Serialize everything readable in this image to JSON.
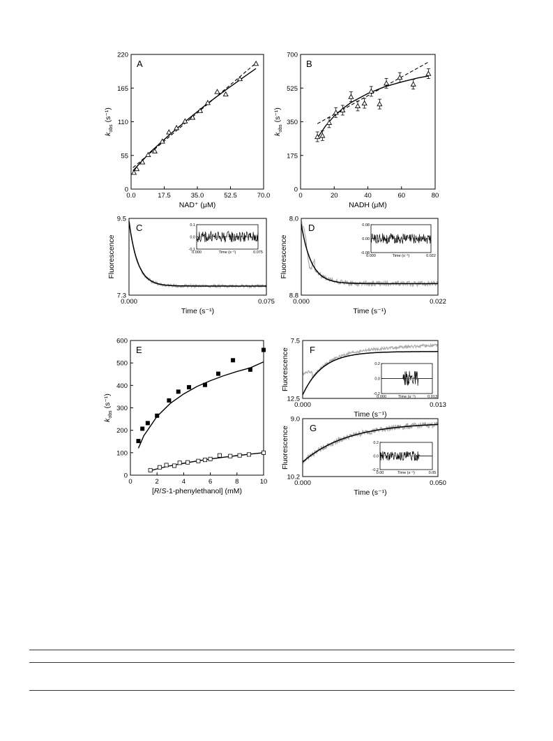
{
  "chart_data": [
    {
      "id": "A",
      "panel_label": "A",
      "type": "scatter",
      "xlabel": "NAD⁺ (μM)",
      "ylabel_main": "k",
      "ylabel_sub": "obs",
      "ylabel_tail": " (s⁻¹)",
      "xlim": [
        0,
        70
      ],
      "ylim": [
        0,
        220
      ],
      "xticks": [
        "0.0",
        "17.5",
        "35.0",
        "52.5",
        "70.0"
      ],
      "yticks": [
        "0",
        "55",
        "110",
        "165",
        "220"
      ],
      "marker": "open-triangle",
      "points": [
        {
          "x": 1.5,
          "y": 27
        },
        {
          "x": 3,
          "y": 33
        },
        {
          "x": 6,
          "y": 44
        },
        {
          "x": 9,
          "y": 56
        },
        {
          "x": 12.5,
          "y": 62
        },
        {
          "x": 16.5,
          "y": 78
        },
        {
          "x": 20,
          "y": 93
        },
        {
          "x": 24,
          "y": 100
        },
        {
          "x": 28.5,
          "y": 111
        },
        {
          "x": 32.5,
          "y": 117
        },
        {
          "x": 36.5,
          "y": 128
        },
        {
          "x": 40.5,
          "y": 141
        },
        {
          "x": 45.5,
          "y": 159
        },
        {
          "x": 50,
          "y": 155
        },
        {
          "x": 57.5,
          "y": 180
        },
        {
          "x": 66,
          "y": 205
        }
      ],
      "fits": [
        {
          "style": "solid",
          "x": [
            1,
            10,
            20,
            30,
            40,
            50,
            60,
            66
          ],
          "y": [
            30,
            60,
            88,
            114,
            139,
            162,
            184,
            197
          ]
        },
        {
          "style": "dashed",
          "x": [
            1,
            66
          ],
          "y": [
            35,
            206
          ]
        }
      ]
    },
    {
      "id": "B",
      "panel_label": "B",
      "type": "scatter",
      "xlabel": "NADH (μM)",
      "ylabel_main": "k",
      "ylabel_sub": "obs",
      "ylabel_tail": " (s⁻¹)",
      "xlim": [
        0,
        80
      ],
      "ylim": [
        0,
        700
      ],
      "xticks": [
        "0",
        "20",
        "40",
        "60",
        "80"
      ],
      "yticks": [
        "0",
        "175",
        "350",
        "525",
        "700"
      ],
      "marker": "open-triangle-errorbar",
      "points": [
        {
          "x": 10,
          "y": 272
        },
        {
          "x": 13,
          "y": 278
        },
        {
          "x": 17,
          "y": 345
        },
        {
          "x": 21,
          "y": 398
        },
        {
          "x": 25,
          "y": 410
        },
        {
          "x": 30,
          "y": 480
        },
        {
          "x": 34,
          "y": 432
        },
        {
          "x": 38,
          "y": 446
        },
        {
          "x": 42,
          "y": 508
        },
        {
          "x": 47,
          "y": 442
        },
        {
          "x": 51,
          "y": 550
        },
        {
          "x": 59,
          "y": 580
        },
        {
          "x": 67,
          "y": 545
        },
        {
          "x": 76,
          "y": 600
        }
      ],
      "fits": [
        {
          "style": "solid",
          "x": [
            10,
            15,
            20,
            25,
            30,
            40,
            50,
            60,
            70,
            76
          ],
          "y": [
            265,
            330,
            380,
            418,
            450,
            497,
            532,
            557,
            578,
            588
          ]
        },
        {
          "style": "dashed",
          "x": [
            10,
            76
          ],
          "y": [
            340,
            660
          ]
        }
      ]
    },
    {
      "id": "C",
      "panel_label": "C",
      "type": "line",
      "xlabel": "Time (s⁻¹)",
      "ylabel": "Fluorescence",
      "xlim": [
        0,
        0.075
      ],
      "ylim": [
        7.3,
        9.5
      ],
      "xticks": [
        "0.000",
        "0.075"
      ],
      "yticks": [
        "7.3",
        "9.5"
      ],
      "trace": {
        "kind": "exp",
        "y0": 9.42,
        "yinf": 7.56,
        "k": 210,
        "noise": 0.03
      },
      "inset": {
        "xlim": [
          0,
          0.075
        ],
        "ylim": [
          -0.1,
          0.1
        ],
        "xticks": [
          "0.000",
          "0.075"
        ],
        "yticks": [
          "0.1",
          "0.0",
          "-0.1"
        ],
        "xlabel": "Time (s⁻¹)",
        "amp": 0.045
      }
    },
    {
      "id": "D",
      "panel_label": "D",
      "type": "line",
      "xlabel": "Time (s⁻¹)",
      "ylabel": "Fluorescence",
      "xlim": [
        0,
        0.022
      ],
      "ylim": [
        8.0,
        8.8
      ],
      "xticks": [
        "0.000",
        "0.022"
      ],
      "yticks": [
        "8.8",
        "8.0"
      ],
      "trace": {
        "kind": "exp",
        "y0": 8.74,
        "yinf": 8.12,
        "k": 620,
        "noise": 0.018
      },
      "inset": {
        "xlim": [
          0,
          0.022
        ],
        "ylim": [
          -0.08,
          0.08
        ],
        "xticks": [
          "0.000",
          "0.022"
        ],
        "yticks": [
          "0.08",
          "0.00",
          "-0.08"
        ],
        "xlabel": "Time (s⁻¹)",
        "amp": 0.03
      }
    },
    {
      "id": "E",
      "panel_label": "E",
      "type": "scatter",
      "xlabel_parts": [
        "[",
        "R",
        "/",
        "S",
        "-1-phenylethanol] (mM)"
      ],
      "ylabel_main": "k",
      "ylabel_sub": "obs",
      "ylabel_tail": " (s⁻¹)",
      "xlim": [
        0,
        10
      ],
      "ylim": [
        0,
        600
      ],
      "xticks": [
        "0",
        "2",
        "4",
        "6",
        "8",
        "10"
      ],
      "yticks": [
        "0",
        "100",
        "200",
        "300",
        "400",
        "500",
        "600"
      ],
      "series": [
        {
          "marker": "filled-square",
          "points": [
            {
              "x": 0.6,
              "y": 152
            },
            {
              "x": 0.9,
              "y": 207
            },
            {
              "x": 1.3,
              "y": 232
            },
            {
              "x": 2.0,
              "y": 265
            },
            {
              "x": 2.9,
              "y": 333
            },
            {
              "x": 3.6,
              "y": 372
            },
            {
              "x": 4.4,
              "y": 392
            },
            {
              "x": 5.6,
              "y": 402
            },
            {
              "x": 6.6,
              "y": 452
            },
            {
              "x": 7.7,
              "y": 512
            },
            {
              "x": 9.0,
              "y": 470
            },
            {
              "x": 10.0,
              "y": 558
            }
          ],
          "fit": {
            "x": [
              0.6,
              1,
              2,
              3,
              4,
              5,
              6,
              7,
              8,
              9,
              10
            ],
            "y": [
              120,
              175,
              262,
              320,
              362,
              395,
              421,
              443,
              462,
              478,
              505
            ]
          }
        },
        {
          "marker": "open-square",
          "points": [
            {
              "x": 1.5,
              "y": 22
            },
            {
              "x": 2.2,
              "y": 35
            },
            {
              "x": 2.7,
              "y": 45
            },
            {
              "x": 3.3,
              "y": 42
            },
            {
              "x": 3.7,
              "y": 55
            },
            {
              "x": 4.3,
              "y": 57
            },
            {
              "x": 5.1,
              "y": 63
            },
            {
              "x": 5.6,
              "y": 68
            },
            {
              "x": 6.0,
              "y": 72
            },
            {
              "x": 6.7,
              "y": 88
            },
            {
              "x": 7.5,
              "y": 85
            },
            {
              "x": 8.2,
              "y": 88
            },
            {
              "x": 8.9,
              "y": 92
            },
            {
              "x": 10.0,
              "y": 100
            }
          ],
          "fit": {
            "x": [
              1.5,
              2,
              3,
              4,
              5,
              6,
              7,
              8,
              9,
              10
            ],
            "y": [
              20,
              28,
              42,
              53,
              63,
              72,
              80,
              87,
              94,
              100
            ]
          }
        }
      ]
    },
    {
      "id": "F",
      "panel_label": "F",
      "type": "line",
      "xlabel": "Time (s⁻¹)",
      "ylabel": "Fluorescence",
      "xlim": [
        0,
        0.013
      ],
      "ylim": [
        7.5,
        12.5
      ],
      "xticks": [
        "0.000",
        "0.013"
      ],
      "yticks": [
        "12.5",
        "7.5"
      ],
      "trace": {
        "kind": "rise",
        "y0": 7.8,
        "yinf": 11.55,
        "k": 520,
        "noise": 0.08
      },
      "inset": {
        "xlim": [
          0,
          0.013
        ],
        "ylim": [
          -0.2,
          0.2
        ],
        "xticks": [
          "0.000",
          "0.013"
        ],
        "yticks": [
          "0.2",
          "0.0",
          "-0.2"
        ],
        "xlabel": "Time (s⁻¹)",
        "amp": 0.1
      }
    },
    {
      "id": "G",
      "panel_label": "G",
      "type": "line",
      "xlabel": "Time (s⁻¹)",
      "ylabel": "Fluorescence",
      "xlim": [
        0,
        0.05
      ],
      "ylim": [
        9.0,
        10.2
      ],
      "xticks": [
        "0.000",
        "0.050"
      ],
      "yticks": [
        "10.2",
        "9.0"
      ],
      "trace": {
        "kind": "rise",
        "y0": 9.3,
        "yinf": 10.12,
        "k": 60,
        "noise": 0.04
      },
      "inset": {
        "xlim": [
          0,
          0.05
        ],
        "ylim": [
          -0.2,
          0.2
        ],
        "xticks": [
          "0.00",
          "0.05"
        ],
        "yticks": [
          "0.2",
          "0.0",
          "-0.2"
        ],
        "xlabel": "Time (s⁻¹)",
        "amp": 0.07
      }
    }
  ]
}
